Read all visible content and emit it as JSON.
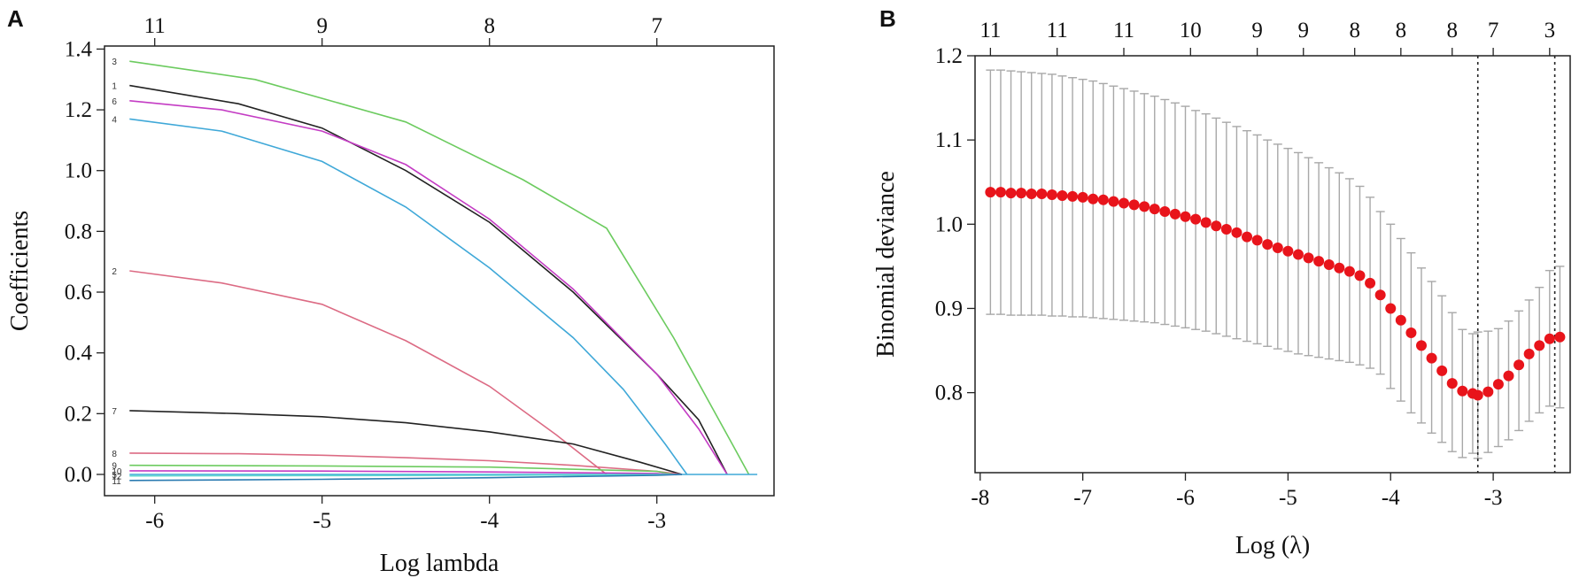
{
  "panels": {
    "a_label": "A",
    "b_label": "B"
  },
  "chart_data": [
    {
      "type": "line",
      "xlabel": "Log lambda",
      "ylabel": "Coefficients",
      "xlim": [
        -6.3,
        -2.3
      ],
      "ylim": [
        -0.07,
        1.41
      ],
      "x_ticks": [
        -6,
        -5,
        -4,
        -3
      ],
      "y_ticks": [
        0.0,
        0.2,
        0.4,
        0.6,
        0.8,
        1.0,
        1.2,
        1.4
      ],
      "y_tick_labels": [
        "0.0",
        "0.2",
        "0.4",
        "0.6",
        "0.8",
        "1.0",
        "1.2",
        "1.4"
      ],
      "top_axis": {
        "positions": [
          -6,
          -5,
          -4,
          -3
        ],
        "labels": [
          "11",
          "9",
          "8",
          "7"
        ]
      },
      "series": [
        {
          "label": "3",
          "color": "#6ccb5f",
          "points": [
            [
              -6.15,
              1.36
            ],
            [
              -5.4,
              1.3
            ],
            [
              -4.5,
              1.16
            ],
            [
              -3.8,
              0.97
            ],
            [
              -3.3,
              0.81
            ],
            [
              -2.9,
              0.45
            ],
            [
              -2.55,
              0.1
            ],
            [
              -2.45,
              0.0
            ]
          ]
        },
        {
          "label": "1",
          "color": "#222222",
          "points": [
            [
              -6.15,
              1.28
            ],
            [
              -5.5,
              1.22
            ],
            [
              -5.0,
              1.14
            ],
            [
              -4.5,
              1.0
            ],
            [
              -4.0,
              0.83
            ],
            [
              -3.5,
              0.6
            ],
            [
              -3.0,
              0.33
            ],
            [
              -2.75,
              0.18
            ],
            [
              -2.58,
              0.0
            ]
          ]
        },
        {
          "label": "6",
          "color": "#c43cc4",
          "points": [
            [
              -6.15,
              1.23
            ],
            [
              -5.6,
              1.2
            ],
            [
              -5.0,
              1.13
            ],
            [
              -4.5,
              1.02
            ],
            [
              -4.0,
              0.84
            ],
            [
              -3.5,
              0.61
            ],
            [
              -3.0,
              0.33
            ],
            [
              -2.75,
              0.15
            ],
            [
              -2.58,
              0.0
            ]
          ]
        },
        {
          "label": "4",
          "color": "#3fa8d8",
          "points": [
            [
              -6.15,
              1.17
            ],
            [
              -5.6,
              1.13
            ],
            [
              -5.0,
              1.03
            ],
            [
              -4.5,
              0.88
            ],
            [
              -4.0,
              0.68
            ],
            [
              -3.5,
              0.45
            ],
            [
              -3.2,
              0.28
            ],
            [
              -2.95,
              0.1
            ],
            [
              -2.82,
              0.0
            ]
          ]
        },
        {
          "label": "2",
          "color": "#dc6b84",
          "points": [
            [
              -6.15,
              0.67
            ],
            [
              -5.6,
              0.63
            ],
            [
              -5.0,
              0.56
            ],
            [
              -4.5,
              0.44
            ],
            [
              -4.0,
              0.29
            ],
            [
              -3.6,
              0.13
            ],
            [
              -3.3,
              0.0
            ]
          ]
        },
        {
          "label": "7",
          "color": "#222222",
          "points": [
            [
              -6.15,
              0.21
            ],
            [
              -5.5,
              0.2
            ],
            [
              -5.0,
              0.19
            ],
            [
              -4.5,
              0.17
            ],
            [
              -4.0,
              0.14
            ],
            [
              -3.5,
              0.1
            ],
            [
              -3.1,
              0.04
            ],
            [
              -2.85,
              0.0
            ]
          ]
        },
        {
          "label": "8",
          "color": "#dc6b84",
          "points": [
            [
              -6.15,
              0.07
            ],
            [
              -5.5,
              0.068
            ],
            [
              -5.0,
              0.063
            ],
            [
              -4.5,
              0.055
            ],
            [
              -4.0,
              0.045
            ],
            [
              -3.5,
              0.03
            ],
            [
              -3.0,
              0.01
            ],
            [
              -2.85,
              0.0
            ]
          ]
        },
        {
          "label": "9",
          "color": "#6ccb5f",
          "points": [
            [
              -6.15,
              0.03
            ],
            [
              -5.0,
              0.028
            ],
            [
              -4.0,
              0.024
            ],
            [
              -3.0,
              0.01
            ],
            [
              -2.9,
              0.0
            ]
          ]
        },
        {
          "label": "10",
          "color": "#c43cc4",
          "points": [
            [
              -6.15,
              0.012
            ],
            [
              -5.0,
              0.011
            ],
            [
              -4.0,
              0.008
            ],
            [
              -3.0,
              0.003
            ],
            [
              -2.9,
              0.0
            ]
          ]
        },
        {
          "label": "5",
          "color": "#3fa8d8",
          "points": [
            [
              -6.15,
              0.0
            ],
            [
              -5.0,
              0.0
            ],
            [
              -4.0,
              0.0
            ],
            [
              -2.4,
              0.0
            ]
          ]
        },
        {
          "label": "12",
          "color": "#62d9d0",
          "points": [
            [
              -6.15,
              -0.005
            ],
            [
              -5.0,
              -0.004
            ],
            [
              -4.0,
              -0.003
            ],
            [
              -3.0,
              -0.001
            ],
            [
              -2.9,
              0.0
            ]
          ]
        },
        {
          "label": "11",
          "color": "#2a7ab0",
          "points": [
            [
              -6.15,
              -0.02
            ],
            [
              -5.0,
              -0.016
            ],
            [
              -4.0,
              -0.011
            ],
            [
              -3.0,
              -0.003
            ],
            [
              -2.85,
              0.0
            ]
          ]
        }
      ]
    },
    {
      "type": "scatter",
      "xlabel": "Log (λ)",
      "ylabel": "Binomial deviance",
      "xlim": [
        -8.05,
        -2.25
      ],
      "ylim": [
        0.705,
        1.2
      ],
      "x_ticks": [
        -8,
        -7,
        -6,
        -5,
        -4,
        -3
      ],
      "y_ticks": [
        0.8,
        0.9,
        1.0,
        1.1,
        1.2
      ],
      "y_tick_labels": [
        "0.8",
        "0.9",
        "1.0",
        "1.1",
        "1.2"
      ],
      "top_axis": {
        "positions": [
          -7.9,
          -7.25,
          -6.6,
          -5.95,
          -5.3,
          -4.85,
          -4.35,
          -3.9,
          -3.4,
          -3.0,
          -2.45
        ],
        "labels": [
          "11",
          "11",
          "11",
          "10",
          "9",
          "9",
          "8",
          "8",
          "8",
          "7",
          "3"
        ]
      },
      "vlines": [
        -3.15,
        -2.4
      ],
      "x": [
        -7.9,
        -7.8,
        -7.7,
        -7.6,
        -7.5,
        -7.4,
        -7.3,
        -7.2,
        -7.1,
        -7.0,
        -6.9,
        -6.8,
        -6.7,
        -6.6,
        -6.5,
        -6.4,
        -6.3,
        -6.2,
        -6.1,
        -6.0,
        -5.9,
        -5.8,
        -5.7,
        -5.6,
        -5.5,
        -5.4,
        -5.3,
        -5.2,
        -5.1,
        -5.0,
        -4.9,
        -4.8,
        -4.7,
        -4.6,
        -4.5,
        -4.4,
        -4.3,
        -4.2,
        -4.1,
        -4.0,
        -3.9,
        -3.8,
        -3.7,
        -3.6,
        -3.5,
        -3.4,
        -3.3,
        -3.2,
        -3.15,
        -3.05,
        -2.95,
        -2.85,
        -2.75,
        -2.65,
        -2.55,
        -2.45,
        -2.35
      ],
      "y": [
        1.038,
        1.038,
        1.037,
        1.037,
        1.036,
        1.036,
        1.035,
        1.034,
        1.033,
        1.032,
        1.03,
        1.029,
        1.027,
        1.025,
        1.023,
        1.021,
        1.018,
        1.015,
        1.012,
        1.009,
        1.006,
        1.002,
        0.998,
        0.994,
        0.99,
        0.985,
        0.981,
        0.976,
        0.972,
        0.968,
        0.964,
        0.96,
        0.956,
        0.952,
        0.948,
        0.944,
        0.939,
        0.93,
        0.916,
        0.9,
        0.886,
        0.871,
        0.856,
        0.841,
        0.826,
        0.811,
        0.802,
        0.799,
        0.797,
        0.801,
        0.81,
        0.82,
        0.833,
        0.846,
        0.856,
        0.864,
        0.866
      ],
      "err_upper": [
        1.183,
        1.183,
        1.182,
        1.181,
        1.18,
        1.179,
        1.178,
        1.176,
        1.174,
        1.172,
        1.17,
        1.167,
        1.164,
        1.161,
        1.158,
        1.155,
        1.152,
        1.148,
        1.144,
        1.14,
        1.135,
        1.131,
        1.126,
        1.121,
        1.116,
        1.111,
        1.106,
        1.1,
        1.095,
        1.09,
        1.085,
        1.079,
        1.073,
        1.067,
        1.061,
        1.054,
        1.045,
        1.032,
        1.015,
        1.0,
        0.983,
        0.966,
        0.948,
        0.932,
        0.915,
        0.895,
        0.875,
        0.87,
        0.872,
        0.873,
        0.876,
        0.885,
        0.897,
        0.91,
        0.925,
        0.945,
        0.95
      ],
      "err_lower": [
        0.893,
        0.893,
        0.892,
        0.892,
        0.892,
        0.892,
        0.891,
        0.891,
        0.89,
        0.89,
        0.889,
        0.888,
        0.887,
        0.886,
        0.885,
        0.884,
        0.883,
        0.881,
        0.879,
        0.877,
        0.875,
        0.873,
        0.87,
        0.867,
        0.864,
        0.861,
        0.858,
        0.855,
        0.852,
        0.849,
        0.846,
        0.844,
        0.842,
        0.84,
        0.838,
        0.836,
        0.833,
        0.829,
        0.822,
        0.805,
        0.79,
        0.776,
        0.764,
        0.752,
        0.741,
        0.73,
        0.723,
        0.728,
        0.722,
        0.729,
        0.736,
        0.744,
        0.755,
        0.766,
        0.776,
        0.784,
        0.782
      ],
      "marker_color": "#e8141b",
      "errorbar_color": "#a8a8a8"
    }
  ]
}
